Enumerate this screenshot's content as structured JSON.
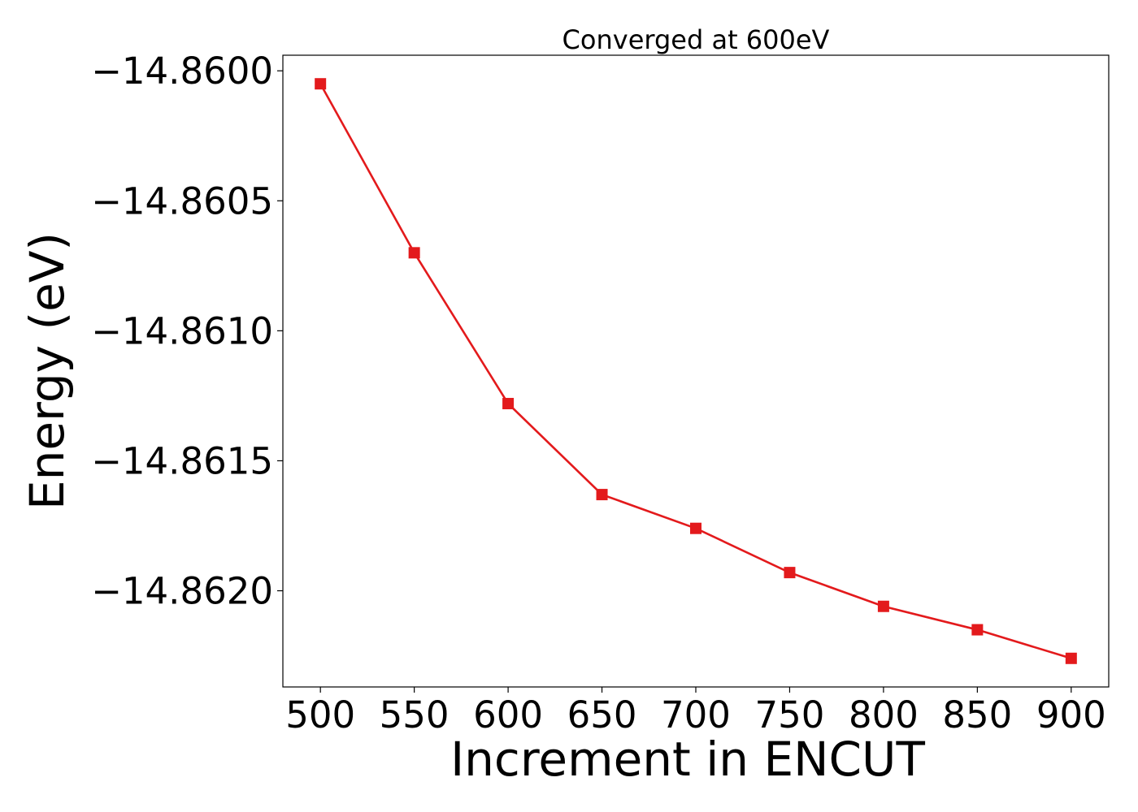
{
  "chart_data": {
    "type": "line",
    "title": "Converged at 600eV",
    "xlabel": "Increment in ENCUT",
    "ylabel": "Energy (eV)",
    "x": [
      500,
      550,
      600,
      650,
      700,
      750,
      800,
      850,
      900
    ],
    "series": [
      {
        "values": [
          -14.86005,
          -14.8607,
          -14.86128,
          -14.86163,
          -14.86176,
          -14.86193,
          -14.86206,
          -14.86215,
          -14.86226
        ],
        "color": "#e31a1c",
        "marker": "square"
      }
    ],
    "xticks": [
      500,
      550,
      600,
      650,
      700,
      750,
      800,
      850,
      900
    ],
    "xtick_labels": [
      "500",
      "550",
      "600",
      "650",
      "700",
      "750",
      "800",
      "850",
      "900"
    ],
    "yticks": [
      -14.86,
      -14.8605,
      -14.861,
      -14.8615,
      -14.862
    ],
    "ytick_labels": [
      "−14.8600",
      "−14.8605",
      "−14.8610",
      "−14.8615",
      "−14.8620"
    ],
    "xlim": [
      480,
      920
    ],
    "ylim": [
      -14.86237,
      -14.85994
    ],
    "grid": false,
    "legend": "none"
  }
}
